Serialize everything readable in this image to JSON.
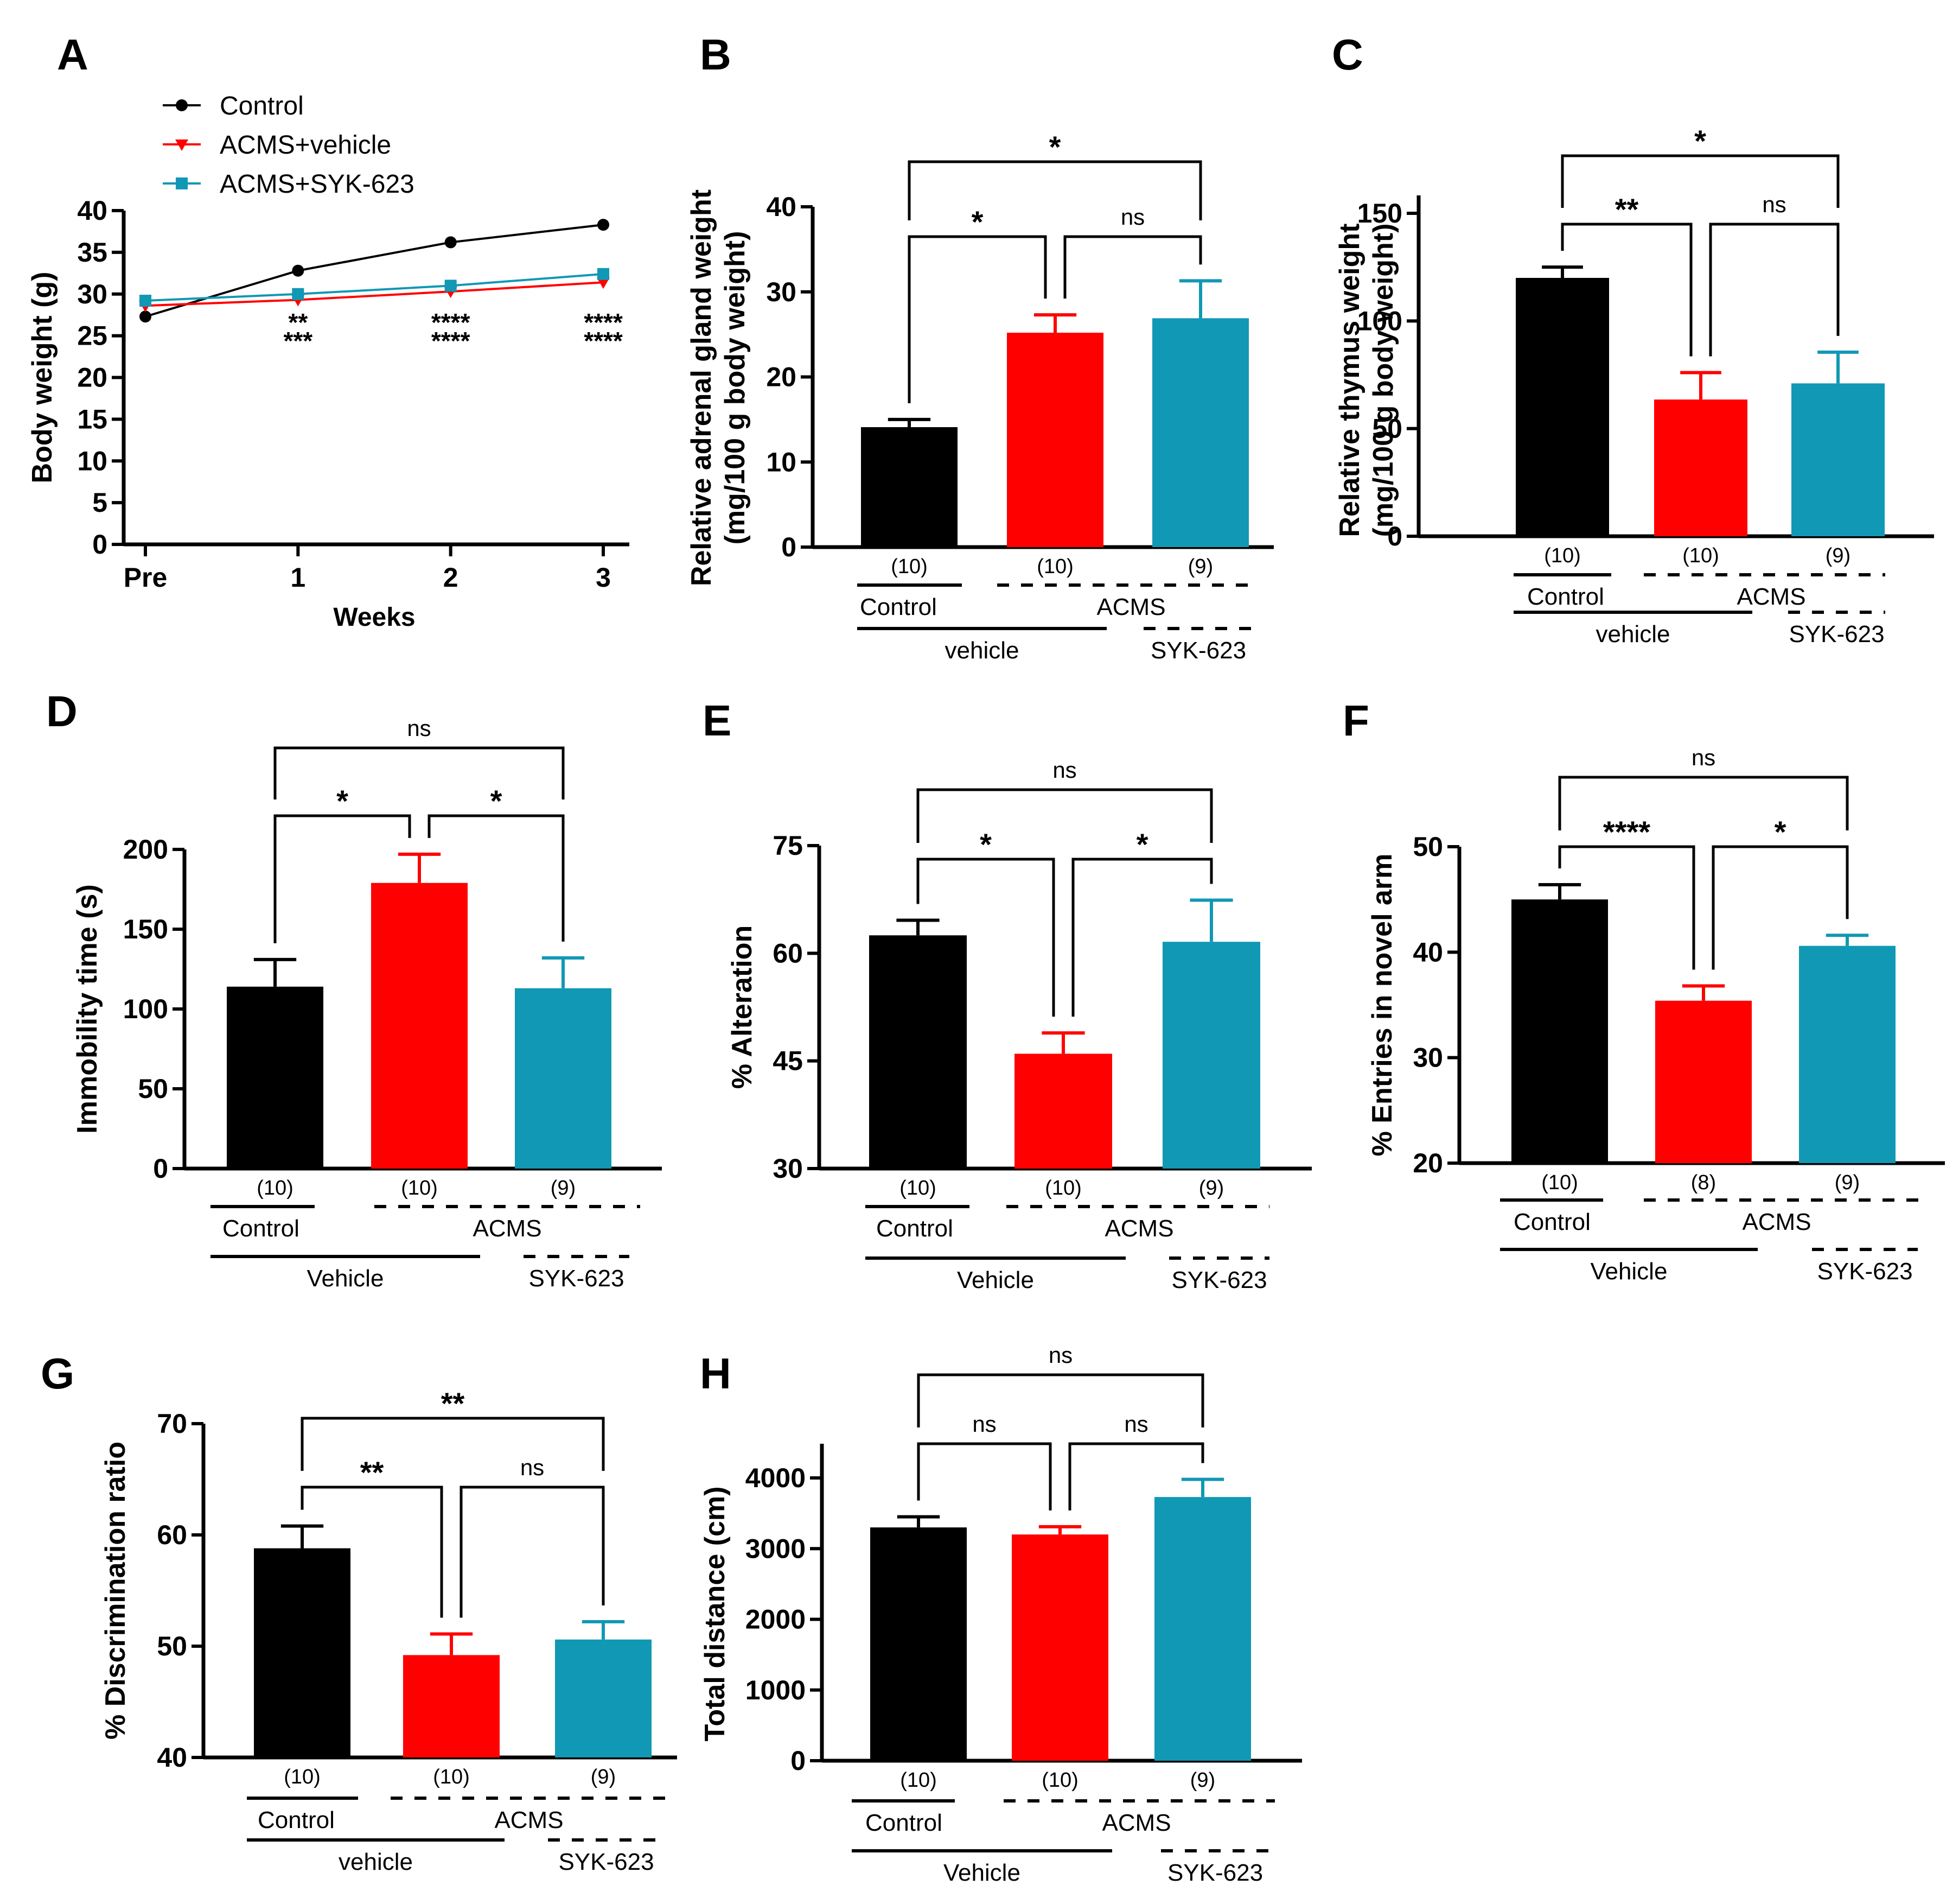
{
  "colors": {
    "control": "#000000",
    "acms_vehicle": "#ff0000",
    "acms_syk": "#1198b4"
  },
  "chart_data": [
    {
      "panel": "A",
      "type": "line",
      "ylabel": "Body weight (g)",
      "xlabel": "Weeks",
      "categories": [
        "Pre",
        "1",
        "2",
        "3"
      ],
      "ylim": [
        0,
        40
      ],
      "yticks": [
        0,
        5,
        10,
        15,
        20,
        25,
        30,
        35,
        40
      ],
      "legend_position": "top-left",
      "series": [
        {
          "name": "Control",
          "color": "#000000",
          "marker": "circle",
          "values": [
            27.3,
            32.8,
            36.2,
            38.3
          ]
        },
        {
          "name": "ACMS+vehicle",
          "color": "#ff0000",
          "marker": "triangle-down",
          "values": [
            28.6,
            29.3,
            30.3,
            31.4
          ]
        },
        {
          "name": "ACMS+SYK-623",
          "color": "#1198b4",
          "marker": "square",
          "values": [
            29.2,
            30.0,
            31.0,
            32.4
          ]
        }
      ],
      "annotations": [
        {
          "category": "1",
          "lines": [
            "**",
            "***"
          ]
        },
        {
          "category": "2",
          "lines": [
            "****",
            "****"
          ]
        },
        {
          "category": "3",
          "lines": [
            "****",
            "****"
          ]
        }
      ]
    },
    {
      "panel": "B",
      "type": "bar",
      "ylabel_lines": [
        "Relative adrenal gland weight",
        "(mg/100 g body weight)"
      ],
      "ylim": [
        0,
        40
      ],
      "yticks": [
        0,
        10,
        20,
        30,
        40
      ],
      "values": [
        14.1,
        25.2,
        26.9
      ],
      "errors": [
        0.9,
        2.1,
        4.4
      ],
      "n": [
        "(10)",
        "(10)",
        "(9)"
      ],
      "group_labels": {
        "first": "Control",
        "dashed": "ACMS",
        "second": "vehicle",
        "drug": "SYK-623"
      },
      "comparisons": [
        {
          "from": 0,
          "to": 1,
          "label": "*"
        },
        {
          "from": 1,
          "to": 2,
          "label": "ns"
        },
        {
          "from": 0,
          "to": 2,
          "label": "*"
        }
      ]
    },
    {
      "panel": "C",
      "type": "bar",
      "ylabel_lines": [
        "Relative thymus weight",
        "(mg/100 g body weight)"
      ],
      "ylim": [
        0,
        150
      ],
      "yticks": [
        0,
        50,
        100,
        150
      ],
      "values": [
        120,
        63.5,
        71
      ],
      "errors": [
        5,
        12.5,
        14.5
      ],
      "n": [
        "(10)",
        "(10)",
        "(9)"
      ],
      "group_labels": {
        "first": "Control",
        "dashed": "ACMS",
        "second": "vehicle",
        "drug": "SYK-623"
      },
      "comparisons": [
        {
          "from": 0,
          "to": 1,
          "label": "**"
        },
        {
          "from": 1,
          "to": 2,
          "label": "ns"
        },
        {
          "from": 0,
          "to": 2,
          "label": "*"
        }
      ]
    },
    {
      "panel": "D",
      "type": "bar",
      "ylabel_lines": [
        "Immobility time (s)"
      ],
      "ylim": [
        0,
        200
      ],
      "yticks": [
        0,
        50,
        100,
        150,
        200
      ],
      "values": [
        114,
        179,
        113
      ],
      "errors": [
        17,
        18,
        19
      ],
      "n": [
        "(10)",
        "(10)",
        "(9)"
      ],
      "group_labels": {
        "first": "Control",
        "dashed": "ACMS",
        "second": "Vehicle",
        "drug": "SYK-623"
      },
      "comparisons": [
        {
          "from": 0,
          "to": 1,
          "label": "*"
        },
        {
          "from": 1,
          "to": 2,
          "label": "*"
        },
        {
          "from": 0,
          "to": 2,
          "label": "ns"
        }
      ]
    },
    {
      "panel": "E",
      "type": "bar",
      "ylabel_lines": [
        "% Alteration"
      ],
      "ylim": [
        30,
        75
      ],
      "yticks": [
        30,
        45,
        60,
        75
      ],
      "values": [
        62.5,
        46,
        61.6
      ],
      "errors": [
        2.1,
        2.9,
        5.8
      ],
      "n": [
        "(10)",
        "(10)",
        "(9)"
      ],
      "group_labels": {
        "first": "Control",
        "dashed": "ACMS",
        "second": "Vehicle",
        "drug": "SYK-623"
      },
      "comparisons": [
        {
          "from": 0,
          "to": 1,
          "label": "*"
        },
        {
          "from": 1,
          "to": 2,
          "label": "*"
        },
        {
          "from": 0,
          "to": 2,
          "label": "ns"
        }
      ]
    },
    {
      "panel": "F",
      "type": "bar",
      "ylabel_lines": [
        "% Entries in novel arm"
      ],
      "ylim": [
        20,
        50
      ],
      "yticks": [
        20,
        30,
        40,
        50
      ],
      "values": [
        45,
        35.4,
        40.6
      ],
      "errors": [
        1.4,
        1.4,
        1.0
      ],
      "n": [
        "(10)",
        "(8)",
        "(9)"
      ],
      "group_labels": {
        "first": "Control",
        "dashed": "ACMS",
        "second": "Vehicle",
        "drug": "SYK-623"
      },
      "comparisons": [
        {
          "from": 0,
          "to": 1,
          "label": "****"
        },
        {
          "from": 1,
          "to": 2,
          "label": "*"
        },
        {
          "from": 0,
          "to": 2,
          "label": "ns"
        }
      ]
    },
    {
      "panel": "G",
      "type": "bar",
      "ylabel_lines": [
        "% Discrimination ratio"
      ],
      "ylim": [
        40,
        70
      ],
      "yticks": [
        40,
        50,
        60,
        70
      ],
      "values": [
        58.8,
        49.2,
        50.6
      ],
      "errors": [
        2.0,
        1.9,
        1.6
      ],
      "n": [
        "(10)",
        "(10)",
        "(9)"
      ],
      "group_labels": {
        "first": "Control",
        "dashed": "ACMS",
        "second": "vehicle",
        "drug": "SYK-623"
      },
      "comparisons": [
        {
          "from": 0,
          "to": 1,
          "label": "**"
        },
        {
          "from": 1,
          "to": 2,
          "label": "ns"
        },
        {
          "from": 0,
          "to": 2,
          "label": "**"
        }
      ]
    },
    {
      "panel": "H",
      "type": "bar",
      "ylabel_lines": [
        "Total distance (cm)"
      ],
      "ylim": [
        0,
        4500
      ],
      "yticks": [
        0,
        1000,
        2000,
        3000,
        4000
      ],
      "values": [
        3300,
        3200,
        3730
      ],
      "errors": [
        150,
        110,
        250
      ],
      "n": [
        "(10)",
        "(10)",
        "(9)"
      ],
      "group_labels": {
        "first": "Control",
        "dashed": "ACMS",
        "second": "Vehicle",
        "drug": "SYK-623"
      },
      "comparisons": [
        {
          "from": 0,
          "to": 1,
          "label": "ns"
        },
        {
          "from": 1,
          "to": 2,
          "label": "ns"
        },
        {
          "from": 0,
          "to": 2,
          "label": "ns"
        }
      ]
    }
  ]
}
